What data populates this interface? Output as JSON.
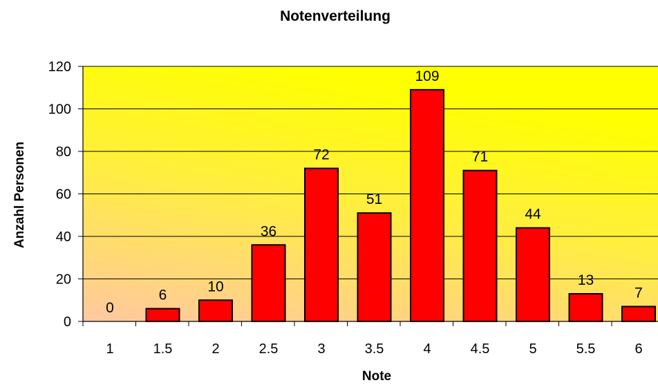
{
  "chart_data": {
    "type": "bar",
    "title": "Notenverteilung",
    "xlabel": "Note",
    "ylabel": "Anzahl Personen",
    "categories": [
      "1",
      "1.5",
      "2",
      "2.5",
      "3",
      "3.5",
      "4",
      "4.5",
      "5",
      "5.5",
      "6"
    ],
    "values": [
      0,
      6,
      10,
      36,
      72,
      51,
      109,
      71,
      44,
      13,
      7
    ],
    "ylim": [
      0,
      120
    ],
    "yticks": [
      "0",
      "20",
      "40",
      "60",
      "80",
      "100",
      "120"
    ],
    "grid": true,
    "colors": {
      "bar": "#ff0000",
      "bar_outline": "#000000",
      "plot_gradient_top": "#ffff00",
      "plot_gradient_bottom": "#ffc8a0",
      "gridline": "#000000"
    }
  }
}
